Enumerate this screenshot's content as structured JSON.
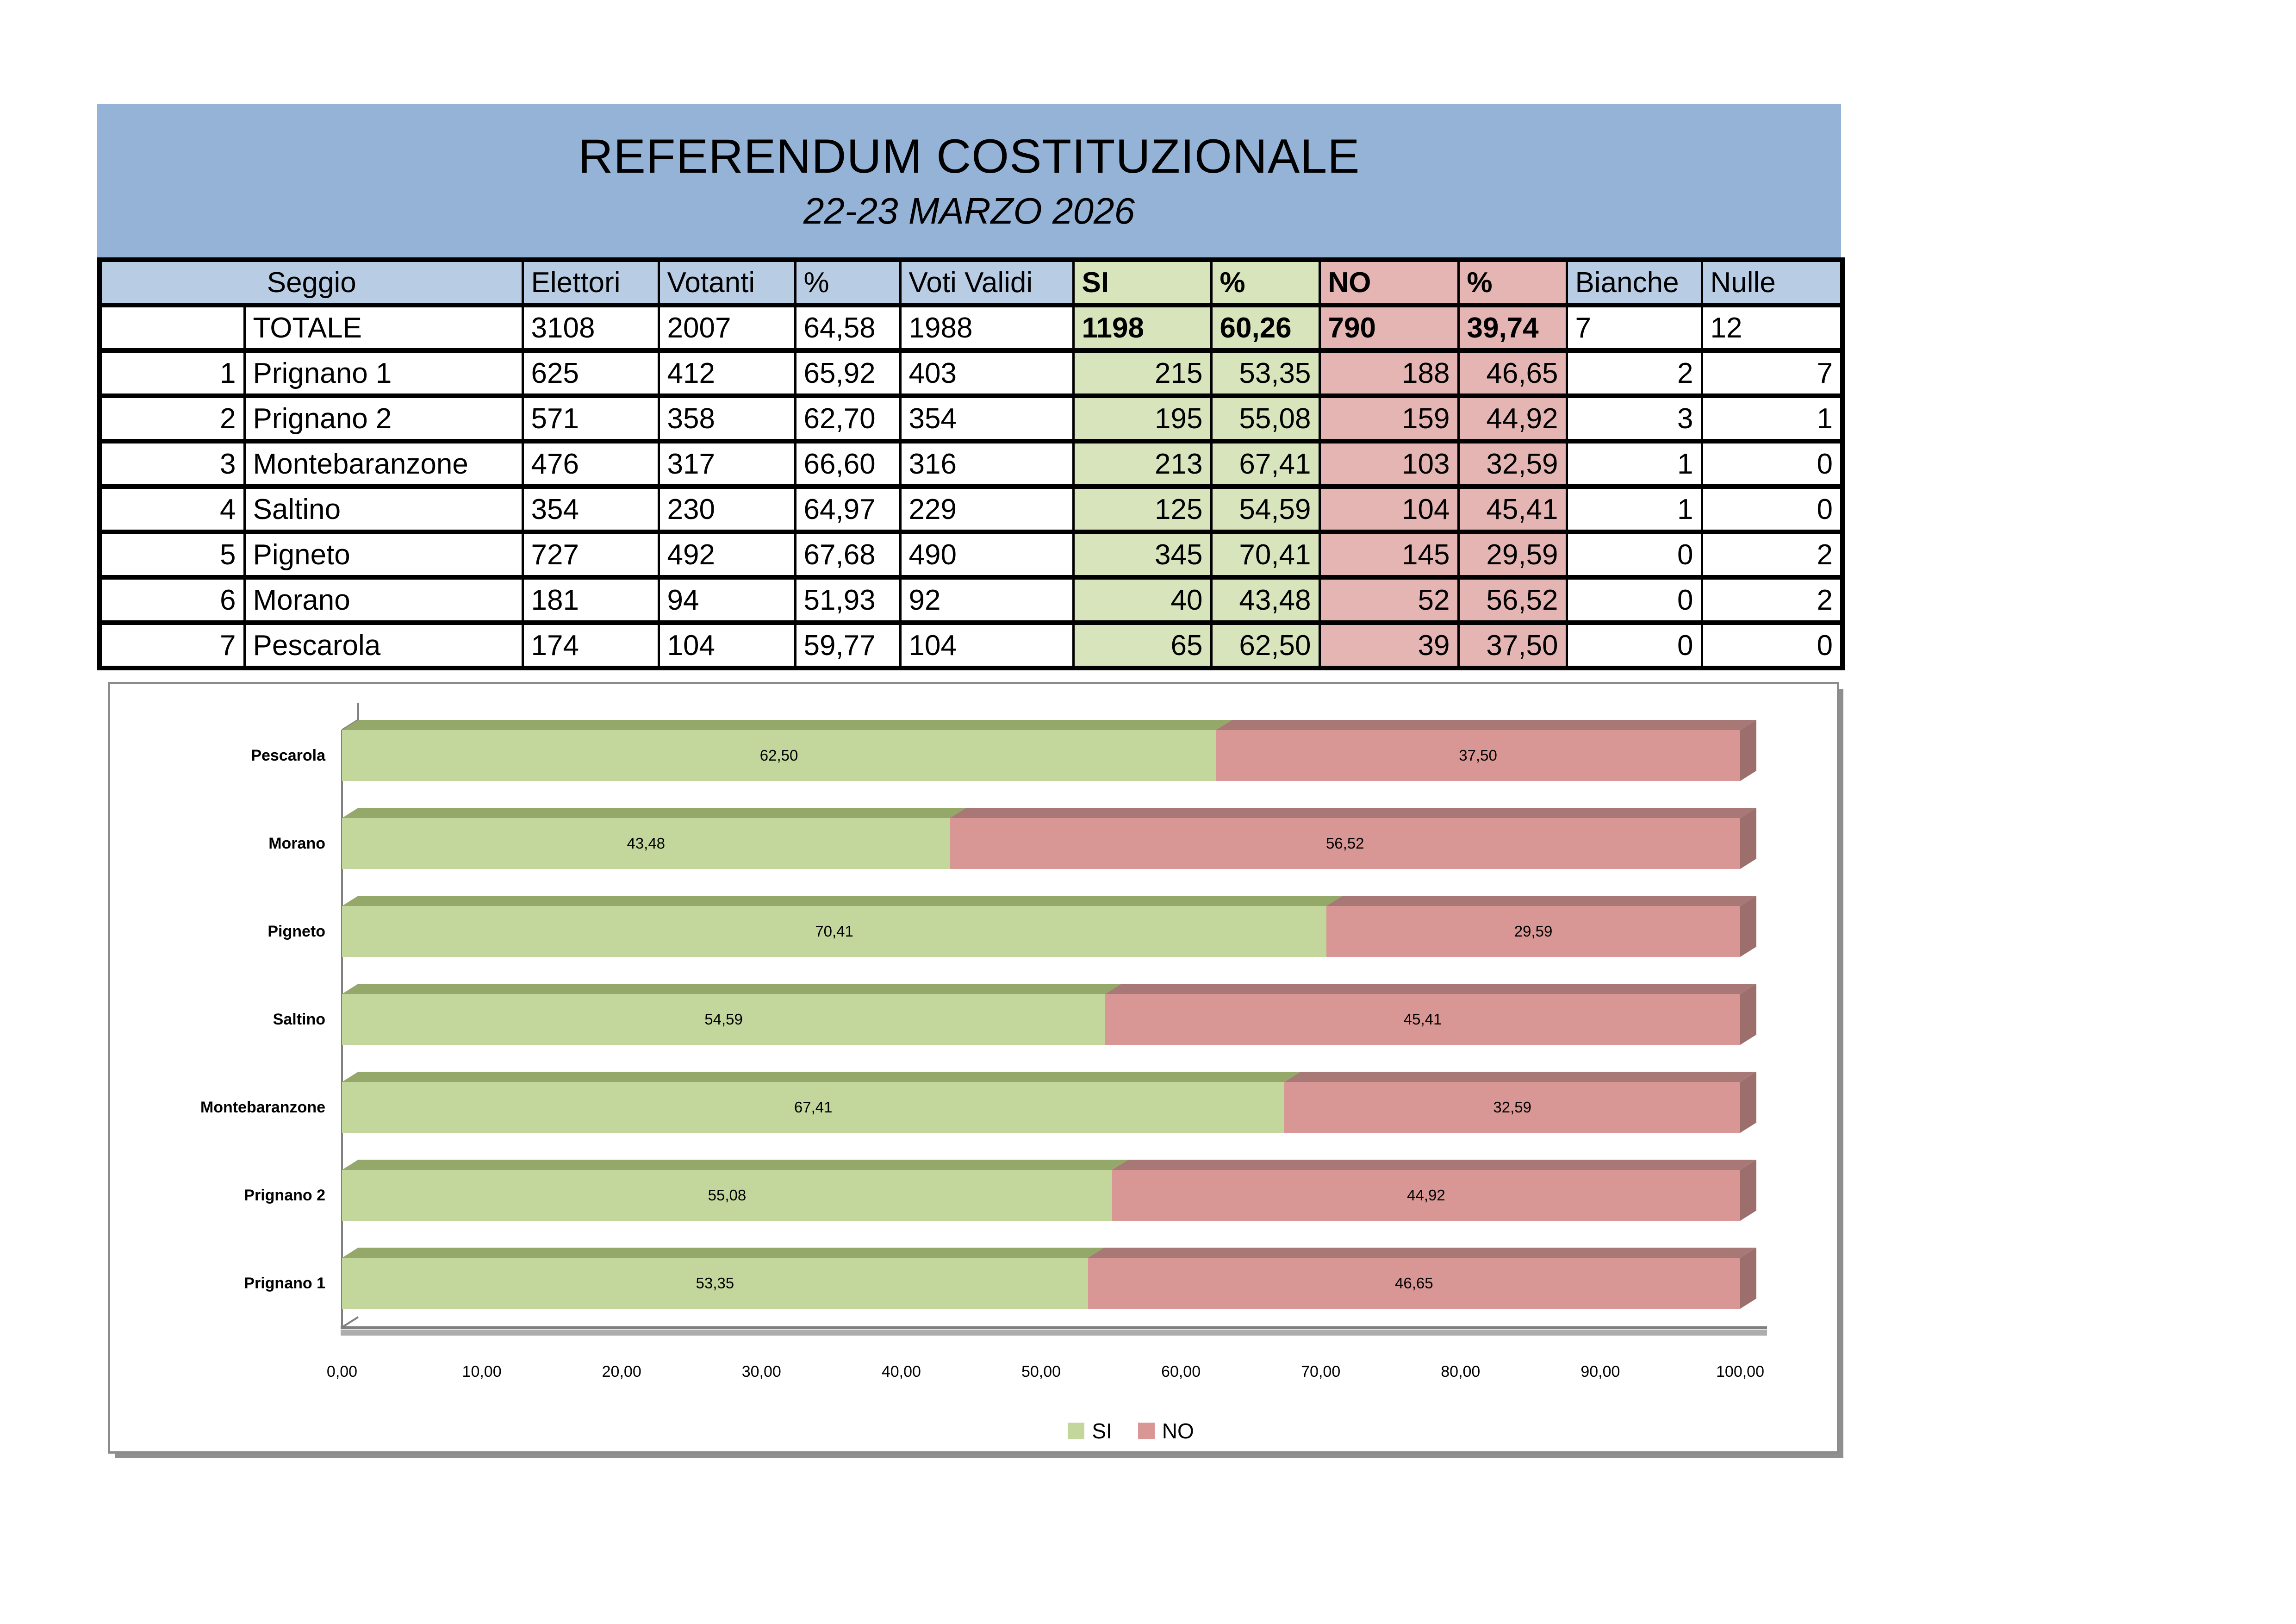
{
  "title": {
    "line1": "REFERENDUM COSTITUZIONALE",
    "line2": "22-23 MARZO 2026"
  },
  "table": {
    "headers": [
      "Seggio",
      "Elettori",
      "Votanti",
      "%",
      "Voti Validi",
      "SI",
      "%",
      "NO",
      "%",
      "Bianche",
      "Nulle"
    ],
    "total_row": [
      "",
      "TOTALE",
      "3108",
      "2007",
      "64,58",
      "1988",
      "1198",
      "60,26",
      "790",
      "39,74",
      "7",
      "12"
    ],
    "rows": [
      [
        "1",
        "Prignano 1",
        "625",
        "412",
        "65,92",
        "403",
        "215",
        "53,35",
        "188",
        "46,65",
        "2",
        "7"
      ],
      [
        "2",
        "Prignano 2",
        "571",
        "358",
        "62,70",
        "354",
        "195",
        "55,08",
        "159",
        "44,92",
        "3",
        "1"
      ],
      [
        "3",
        "Montebaranzone",
        "476",
        "317",
        "66,60",
        "316",
        "213",
        "67,41",
        "103",
        "32,59",
        "1",
        "0"
      ],
      [
        "4",
        "Saltino",
        "354",
        "230",
        "64,97",
        "229",
        "125",
        "54,59",
        "104",
        "45,41",
        "1",
        "0"
      ],
      [
        "5",
        "Pigneto",
        "727",
        "492",
        "67,68",
        "490",
        "345",
        "70,41",
        "145",
        "29,59",
        "0",
        "2"
      ],
      [
        "6",
        "Morano",
        "181",
        "94",
        "51,93",
        "92",
        "40",
        "43,48",
        "52",
        "56,52",
        "0",
        "2"
      ],
      [
        "7",
        "Pescarola",
        "174",
        "104",
        "59,77",
        "104",
        "65",
        "62,50",
        "39",
        "37,50",
        "0",
        "0"
      ]
    ]
  },
  "chart_data": {
    "type": "bar",
    "subtype": "stacked-horizontal-3d",
    "order": "top-to-bottom",
    "categories": [
      "Pescarola",
      "Morano",
      "Pigneto",
      "Saltino",
      "Montebaranzone",
      "Prignano 2",
      "Prignano 1"
    ],
    "series": [
      {
        "name": "SI",
        "color": "#C3D69B",
        "top_color": "#93A869",
        "side_color": "#89A05E",
        "values": [
          62.5,
          43.48,
          70.41,
          54.59,
          67.41,
          55.08,
          53.35
        ]
      },
      {
        "name": "NO",
        "color": "#D89694",
        "top_color": "#A87876",
        "side_color": "#9C6F6D",
        "values": [
          37.5,
          56.52,
          29.59,
          45.41,
          32.59,
          44.92,
          46.65
        ]
      }
    ],
    "data_labels": [
      [
        "62,50",
        "43,48",
        "70,41",
        "54,59",
        "67,41",
        "55,08",
        "53,35"
      ],
      [
        "37,50",
        "56,52",
        "29,59",
        "45,41",
        "32,59",
        "44,92",
        "46,65"
      ]
    ],
    "x_ticks": [
      "0,00",
      "10,00",
      "20,00",
      "30,00",
      "40,00",
      "50,00",
      "60,00",
      "70,00",
      "80,00",
      "90,00",
      "100,00"
    ],
    "xlim": [
      0,
      100
    ],
    "grid": false,
    "legend_position": "bottom"
  },
  "colors": {
    "banner_bg": "#95B3D7",
    "header_bg": "#B8CCE4",
    "si_cell_bg": "#D8E4BC",
    "no_cell_bg": "#E4B5B2",
    "table_border": "#000000",
    "chart_border": "#8C8C8C",
    "axis_gray": "#808080"
  }
}
